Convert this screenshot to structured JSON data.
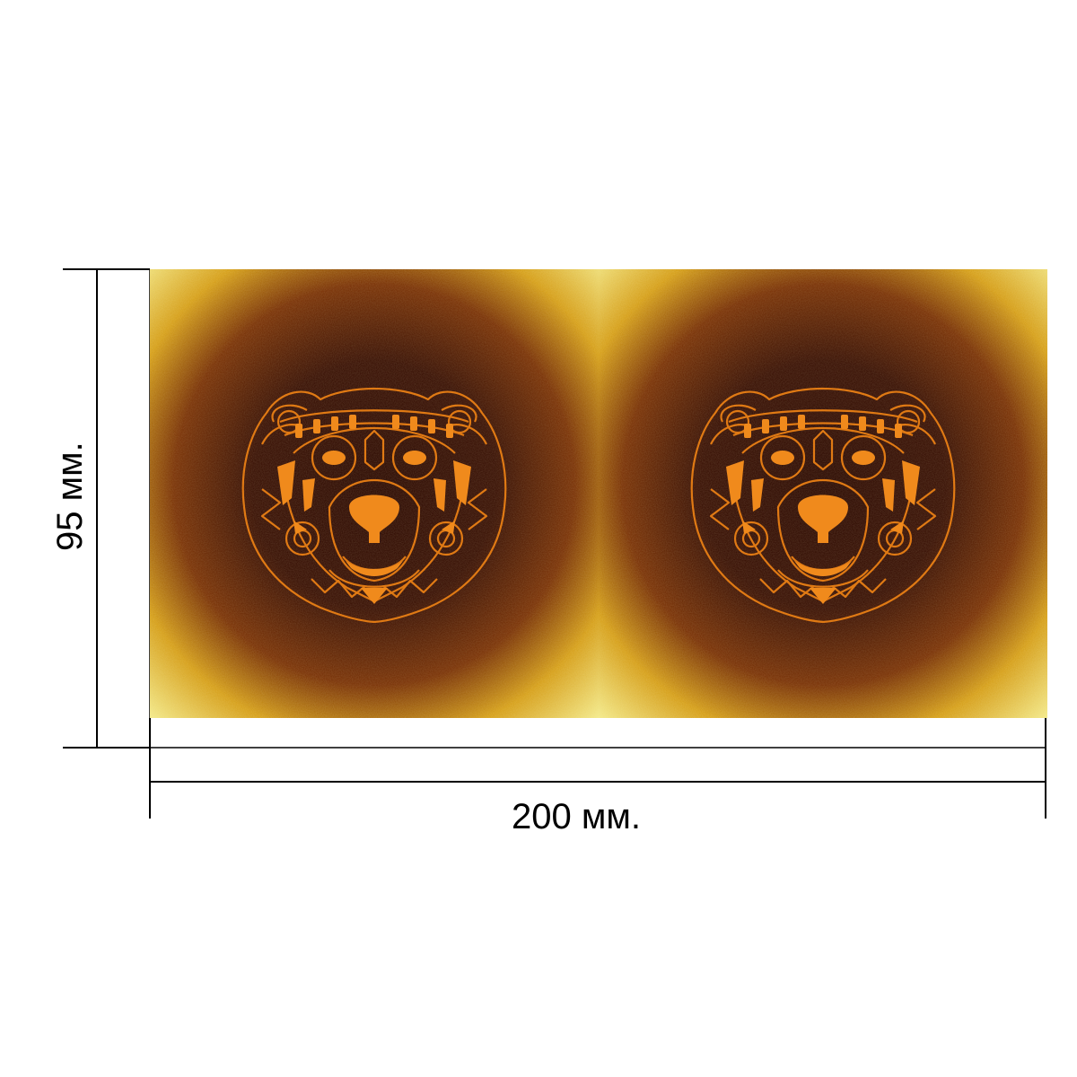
{
  "dimensions": {
    "width_label": "200 мм.",
    "height_label": "95 мм."
  },
  "print": {
    "panel_count": 2,
    "motif": "ornamental-bear-head",
    "colors": {
      "edge": "#f3e98a",
      "mid": "#d6a01c",
      "dark": "#3a1206",
      "center": "#2e0c04",
      "ornament": "#f08a1c",
      "line": "#e07a14"
    }
  }
}
